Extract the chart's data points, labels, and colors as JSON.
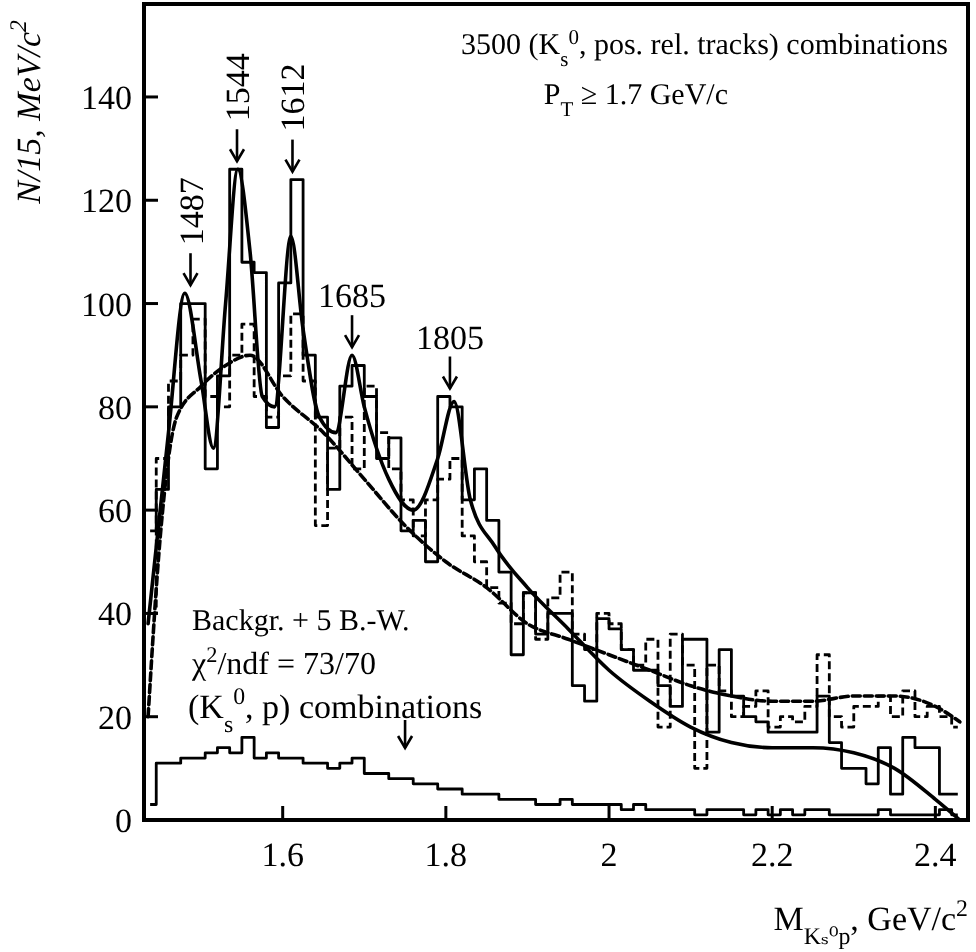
{
  "chart_data": {
    "type": "step",
    "title": "3500 (K$_{s}$$^{0}$, pos. rel. tracks) combinations",
    "subtitle": "P$_{T}$ ≥ 1.7 GeV/c",
    "xlabel": "M$_{Kₛ⁰p}$, GeV/c$^{2}$",
    "ylabel": "N/15, MeV/c$^{2}$",
    "x": [
      1.4375,
      1.4525,
      1.4675,
      1.4825,
      1.4975,
      1.5125,
      1.5275,
      1.5425,
      1.5575,
      1.5725,
      1.5875,
      1.6025,
      1.6175,
      1.6325,
      1.6475,
      1.6625,
      1.6775,
      1.6925,
      1.7075,
      1.7225,
      1.7375,
      1.7525,
      1.7675,
      1.7825,
      1.7975,
      1.8125,
      1.8275,
      1.8425,
      1.8575,
      1.8725,
      1.8875,
      1.9025,
      1.9175,
      1.9325,
      1.9475,
      1.9625,
      1.9775,
      1.9925,
      2.0075,
      2.0225,
      2.0375,
      2.0525,
      2.0675,
      2.0825,
      2.0975,
      2.1125,
      2.1275,
      2.1425,
      2.1575,
      2.1725,
      2.1875,
      2.2025,
      2.2175,
      2.2325,
      2.2475,
      2.2625,
      2.2775,
      2.2925,
      2.3075,
      2.3225,
      2.3375,
      2.3525,
      2.3675,
      2.3825,
      2.3975,
      2.4125,
      2.4275
    ],
    "series": [
      {
        "color": "#000000",
        "line_style": "solid",
        "values": [
          56,
          64,
          80,
          100,
          100,
          68,
          86,
          126,
          108,
          106,
          76,
          104,
          124,
          90,
          78,
          64,
          84,
          88,
          82,
          70,
          74,
          56,
          58,
          50,
          82,
          80,
          62,
          68,
          58,
          48,
          32,
          44,
          36,
          40,
          40,
          26,
          23,
          39,
          37,
          33,
          29,
          29,
          26,
          22,
          35,
          35,
          17,
          33,
          24,
          20,
          19,
          17,
          17,
          17,
          17,
          24,
          15,
          10,
          10,
          7,
          14,
          5,
          16,
          14,
          14,
          5,
          5
        ]
      },
      {
        "color": "#000000",
        "line_style": "dashed",
        "values": [
          40,
          70,
          85,
          90,
          97,
          82,
          80,
          90,
          96,
          82,
          78,
          86,
          98,
          85,
          57,
          72,
          78,
          68,
          84,
          75,
          68,
          62,
          55,
          62,
          66,
          70,
          55,
          50,
          45,
          42,
          38,
          44,
          35,
          43,
          48,
          36,
          33,
          40,
          38,
          33,
          30,
          35,
          18,
          36,
          30,
          10,
          30,
          25,
          20,
          22,
          25,
          18,
          20,
          19,
          22,
          32,
          20,
          18,
          22,
          22,
          24,
          20,
          25,
          20,
          22,
          20,
          18
        ]
      },
      {
        "name": "(K$_{s}$$^{0}$, p) combinations",
        "color": "#000000",
        "line_style": "solid",
        "values": [
          3,
          11,
          11,
          12,
          12,
          13,
          14,
          13,
          16,
          12,
          13,
          12,
          12,
          11,
          11,
          10,
          11,
          12,
          9,
          9,
          8,
          8,
          7,
          7,
          6,
          6,
          5,
          5,
          5,
          4,
          4,
          4,
          3,
          3,
          4,
          3,
          3,
          3,
          3,
          2,
          3,
          2,
          2,
          2,
          2,
          1,
          2,
          2,
          2,
          1,
          2,
          1,
          2,
          1,
          2,
          2,
          1,
          1,
          1,
          1,
          2,
          1,
          1,
          1,
          1,
          2,
          1
        ]
      },
      {
        "type": "line",
        "color": "#000000",
        "line_style": "solid",
        "x": [
          1.435,
          1.46,
          1.48,
          1.5,
          1.515,
          1.53,
          1.545,
          1.56,
          1.575,
          1.59,
          1.61,
          1.625,
          1.645,
          1.665,
          1.685,
          1.7,
          1.73,
          1.76,
          1.79,
          1.81,
          1.83,
          1.86,
          1.9,
          1.95,
          2.0,
          2.05,
          2.1,
          2.15,
          2.2,
          2.25,
          2.3,
          2.35,
          2.4,
          2.43
        ],
        "values": [
          38,
          75,
          102,
          85,
          72,
          100,
          126,
          110,
          82,
          80,
          113,
          95,
          78,
          75,
          90,
          80,
          66,
          60,
          70,
          81,
          62,
          53,
          45,
          37,
          29,
          23,
          18,
          15,
          14,
          14,
          13,
          10,
          4,
          0
        ]
      },
      {
        "type": "line",
        "color": "#000000",
        "line_style": "dashed",
        "x": [
          1.435,
          1.45,
          1.47,
          1.5,
          1.53,
          1.56,
          1.6,
          1.65,
          1.7,
          1.75,
          1.8,
          1.85,
          1.9,
          1.95,
          2.0,
          2.05,
          2.1,
          2.15,
          2.2,
          2.25,
          2.3,
          2.35,
          2.4,
          2.43
        ],
        "values": [
          20,
          55,
          78,
          84,
          88,
          90,
          82,
          75,
          66,
          57,
          50,
          45,
          38,
          35,
          32,
          29,
          26,
          24,
          23,
          23,
          24,
          24,
          22,
          19
        ]
      }
    ],
    "annotations": [
      {
        "text": "1487",
        "x": 1.487,
        "y": 102
      },
      {
        "text": "1544",
        "x": 1.544,
        "y": 126
      },
      {
        "text": "1612",
        "x": 1.612,
        "y": 124
      },
      {
        "text": "1685",
        "x": 1.685,
        "y": 90
      },
      {
        "text": "1805",
        "x": 1.805,
        "y": 82
      },
      "Backgr. + 5 B.-W.",
      "χ$^{2}$/ndf = 73/70"
    ],
    "xlim": [
      1.43,
      2.44
    ],
    "ylim": [
      0,
      158
    ],
    "xticks": [
      1.6,
      1.8,
      2,
      2.2,
      2.4
    ],
    "yticks": [
      0,
      20,
      40,
      60,
      80,
      100,
      120,
      140
    ]
  }
}
